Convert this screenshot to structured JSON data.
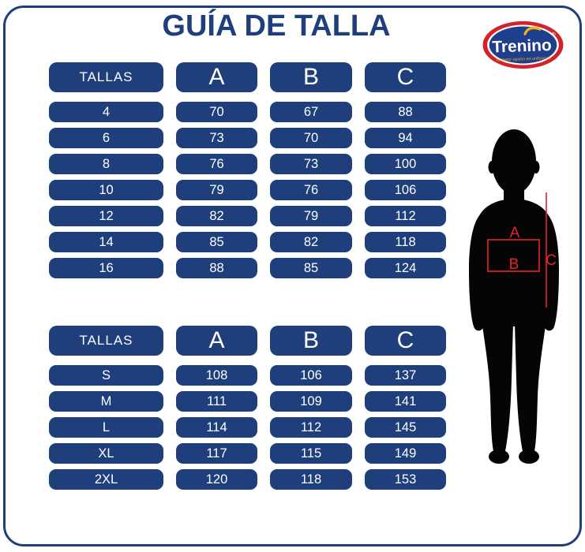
{
  "page": {
    "title": "GUÍA DE TALLA"
  },
  "logo": {
    "brand": "Trenino",
    "registered": "®",
    "tagline": "tu mejor opción en uniformes"
  },
  "colors": {
    "navy": "#1e3e7c",
    "logo_inner_navy": "#1f3f8c",
    "logo_ring_red": "#d2232a",
    "logo_yellow": "#f2b01e",
    "measure_red": "#e8222a",
    "silhouette_black": "#050505"
  },
  "table_children": {
    "headers": [
      "TALLAS",
      "A",
      "B",
      "C"
    ],
    "rows": [
      [
        "4",
        "70",
        "67",
        "88"
      ],
      [
        "6",
        "73",
        "70",
        "94"
      ],
      [
        "8",
        "76",
        "73",
        "100"
      ],
      [
        "10",
        "79",
        "76",
        "106"
      ],
      [
        "12",
        "82",
        "79",
        "112"
      ],
      [
        "14",
        "85",
        "82",
        "118"
      ],
      [
        "16",
        "88",
        "85",
        "124"
      ]
    ]
  },
  "table_adult": {
    "headers": [
      "TALLAS",
      "A",
      "B",
      "C"
    ],
    "rows": [
      [
        "S",
        "108",
        "106",
        "137"
      ],
      [
        "M",
        "111",
        "109",
        "141"
      ],
      [
        "L",
        "114",
        "112",
        "145"
      ],
      [
        "XL",
        "117",
        "115",
        "149"
      ],
      [
        "2XL",
        "120",
        "118",
        "153"
      ]
    ]
  },
  "figure": {
    "label_a": "A",
    "label_b": "B",
    "label_c": "C"
  }
}
